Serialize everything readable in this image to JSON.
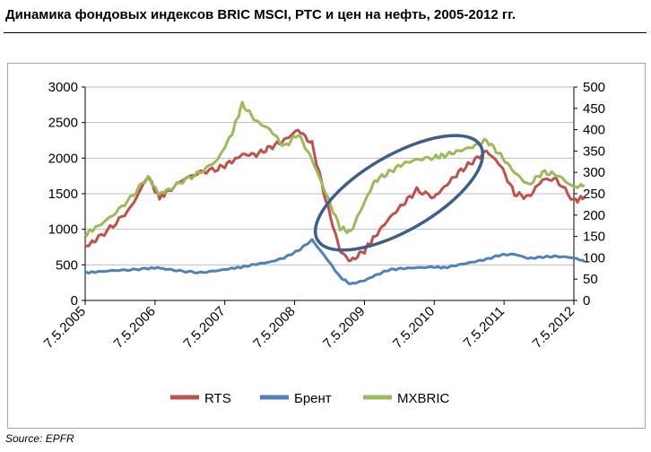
{
  "title": "Динамика фондовых индексов BRIC MSCI, РТС и цен на нефть, 2005-2012 гг.",
  "source": "Source: EPFR",
  "colors": {
    "rts": "#c0504d",
    "brent": "#4f81bd",
    "mxbric": "#9bbb59",
    "ellipse": "#3d5f8a",
    "grid": "#bfbfbf"
  },
  "chart_data": {
    "type": "line",
    "title": "Динамика фондовых индексов BRIC MSCI, РТС и цен на нефть, 2005-2012 гг.",
    "x_tick_labels": [
      "7.5.2005",
      "7.5.2006",
      "7.5.2007",
      "7.5.2008",
      "7.5.2009",
      "7.5.2010",
      "7.5.2011",
      "7.5.2012"
    ],
    "y_left": {
      "range": [
        0,
        3000
      ],
      "ticks": [
        "0",
        "500",
        "1000",
        "1500",
        "2000",
        "2500",
        "3000"
      ]
    },
    "y_right": {
      "range": [
        0,
        500
      ],
      "ticks": [
        "0",
        "50",
        "100",
        "150",
        "200",
        "250",
        "300",
        "350",
        "400",
        "450",
        "500"
      ]
    },
    "grid": "horizontal",
    "legend_position": "bottom",
    "x_years": [
      2005.35,
      2005.5,
      2005.75,
      2006.0,
      2006.25,
      2006.4,
      2006.5,
      2006.75,
      2007.0,
      2007.25,
      2007.45,
      2007.6,
      2007.8,
      2008.0,
      2008.2,
      2008.4,
      2008.6,
      2008.8,
      2009.0,
      2009.15,
      2009.35,
      2009.5,
      2009.7,
      2009.9,
      2010.1,
      2010.35,
      2010.5,
      2010.7,
      2010.9,
      2011.1,
      2011.3,
      2011.5,
      2011.7,
      2011.9,
      2012.1,
      2012.35,
      2012.5
    ],
    "series": [
      {
        "name": "RTS",
        "axis": "left",
        "values": [
          750,
          850,
          1050,
          1300,
          1750,
          1450,
          1500,
          1700,
          1800,
          1850,
          1950,
          2050,
          2050,
          2150,
          2250,
          2400,
          2200,
          1400,
          700,
          550,
          700,
          900,
          1150,
          1350,
          1550,
          1450,
          1600,
          1800,
          1950,
          2100,
          1900,
          1500,
          1450,
          1700,
          1700,
          1400,
          1450
        ]
      },
      {
        "name": "Брент",
        "axis": "left",
        "values": [
          390,
          400,
          420,
          430,
          450,
          460,
          440,
          410,
          390,
          420,
          450,
          470,
          510,
          540,
          600,
          700,
          850,
          600,
          330,
          230,
          280,
          350,
          430,
          450,
          460,
          470,
          460,
          500,
          540,
          580,
          640,
          650,
          590,
          610,
          620,
          600,
          550
        ]
      },
      {
        "name": "MXBRIC",
        "axis": "right",
        "values": [
          155,
          170,
          200,
          240,
          290,
          250,
          255,
          280,
          300,
          330,
          390,
          460,
          420,
          400,
          360,
          390,
          330,
          250,
          170,
          160,
          230,
          280,
          300,
          320,
          330,
          335,
          340,
          350,
          360,
          375,
          340,
          300,
          270,
          300,
          295,
          265,
          270
        ]
      }
    ],
    "annotation": "ellipse around 2008.8–2010.9 recovery"
  }
}
